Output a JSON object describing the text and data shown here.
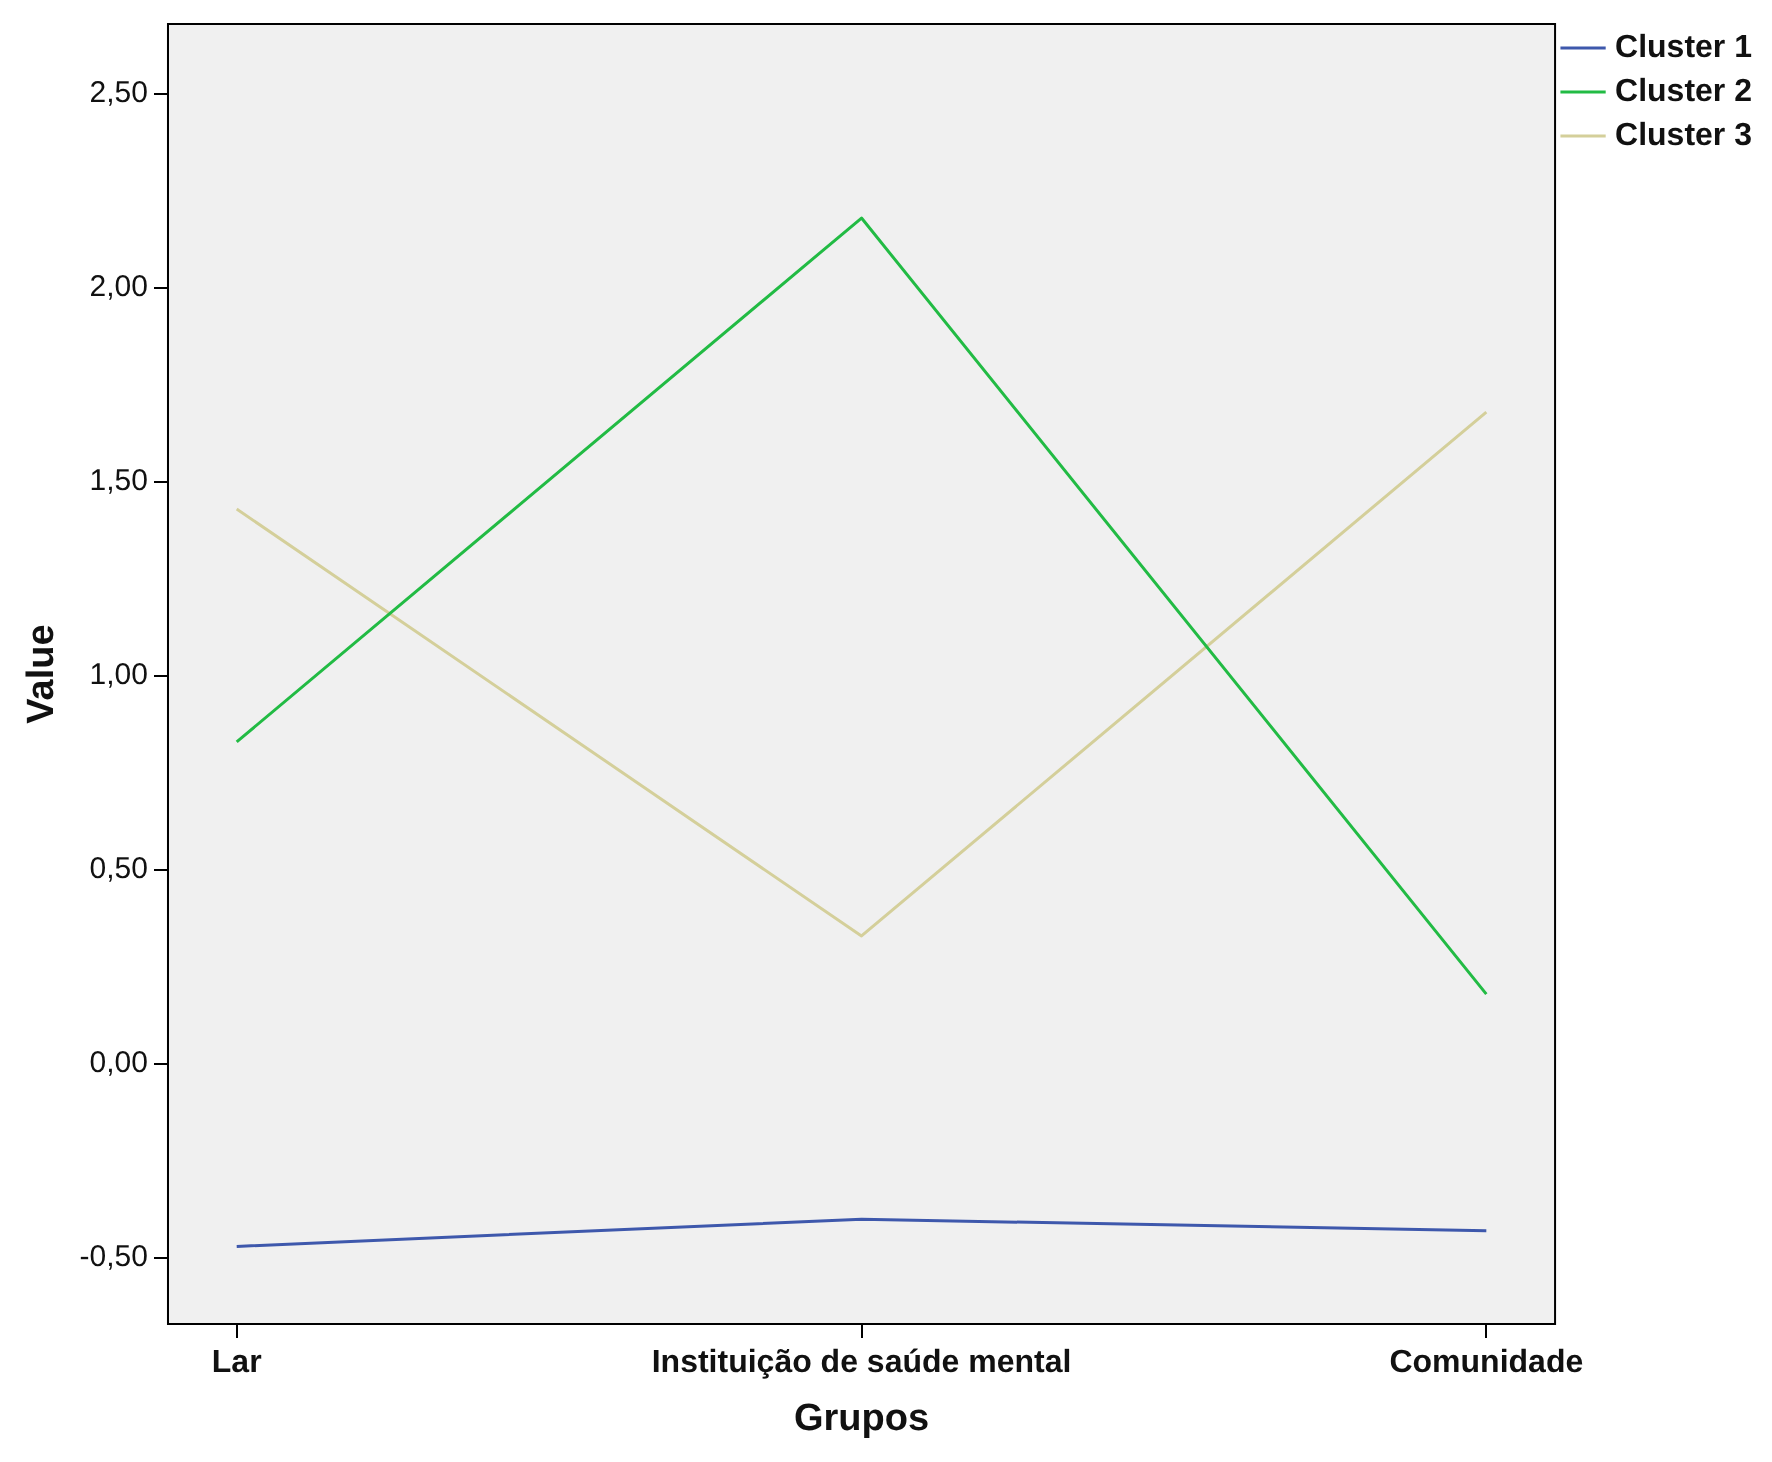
{
  "chart_data": {
    "type": "line",
    "xlabel": "Grupos",
    "ylabel": "Value",
    "categories": [
      "Lar",
      "Instituição de saúde mental",
      "Comunidade"
    ],
    "ylim": [
      -0.67,
      2.68
    ],
    "yticks": [
      {
        "value": -0.5,
        "label": "-0,50"
      },
      {
        "value": 0,
        "label": "0,00"
      },
      {
        "value": 0.5,
        "label": "0,50"
      },
      {
        "value": 1,
        "label": "1,00"
      },
      {
        "value": 1.5,
        "label": "1,50"
      },
      {
        "value": 2,
        "label": "2,00"
      },
      {
        "value": 2.5,
        "label": "2,50"
      }
    ],
    "series": [
      {
        "name": "Cluster 1",
        "color": "#3e58ac",
        "values": [
          -0.47,
          -0.4,
          -0.43
        ]
      },
      {
        "name": "Cluster 2",
        "color": "#22bb44",
        "values": [
          0.83,
          2.18,
          0.18
        ]
      },
      {
        "name": "Cluster 3",
        "color": "#d4cf9a",
        "values": [
          1.43,
          0.33,
          1.68
        ]
      }
    ],
    "legend": "top right",
    "marker": "none",
    "line_style": "solid"
  }
}
